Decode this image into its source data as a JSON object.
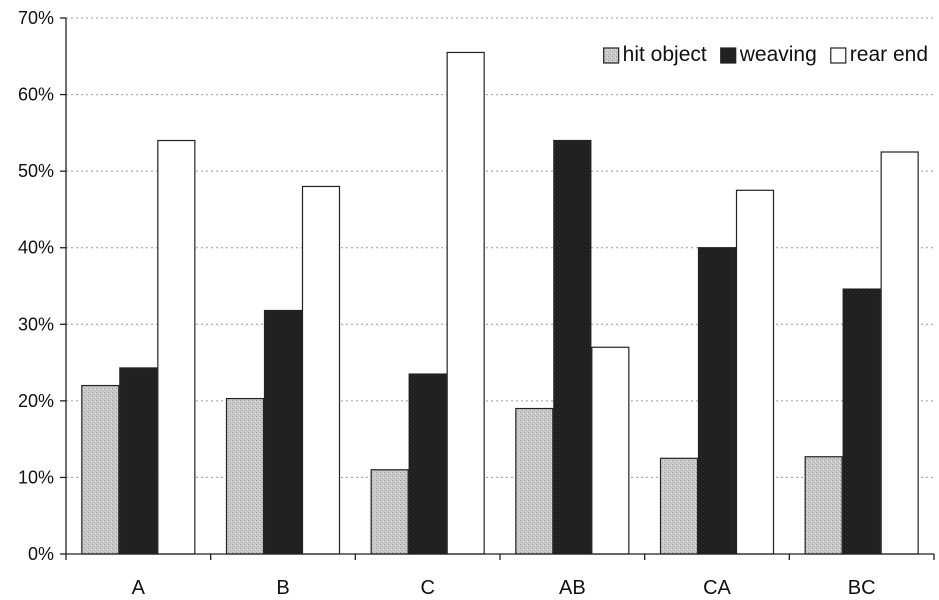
{
  "chart_data": {
    "type": "bar",
    "title": "",
    "xlabel": "",
    "ylabel": "",
    "categories": [
      "A",
      "B",
      "C",
      "AB",
      "CA",
      "BC"
    ],
    "series": [
      {
        "name": "hit object",
        "values": [
          22,
          20.3,
          11,
          19,
          12.5,
          12.7
        ],
        "color": "#c4c4c4"
      },
      {
        "name": "weaving",
        "values": [
          24.3,
          31.8,
          23.5,
          54,
          40,
          34.6
        ],
        "color": "#222222"
      },
      {
        "name": "rear end",
        "values": [
          54,
          48,
          65.5,
          27,
          47.5,
          52.5
        ],
        "color": "#ffffff"
      }
    ],
    "ylim": [
      0,
      70
    ],
    "yticks": [
      0,
      10,
      20,
      30,
      40,
      50,
      60,
      70
    ],
    "ytick_labels": [
      "0%",
      "10%",
      "20%",
      "30%",
      "40%",
      "50%",
      "60%",
      "70%"
    ],
    "value_format": "percent",
    "grid": true,
    "legend": {
      "placement": "top-right"
    }
  }
}
